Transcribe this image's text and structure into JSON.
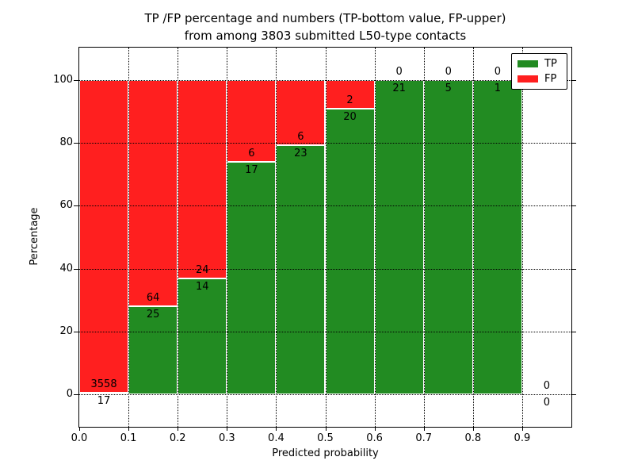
{
  "title": {
    "line1": "TP /FP percentage and numbers (TP-bottom value, FP-upper)",
    "line2": "from among 3803 submitted L50-type contacts"
  },
  "chart_data": {
    "type": "bar",
    "stacked": true,
    "title": "TP /FP percentage and numbers (TP-bottom value, FP-upper) from among 3803 submitted L50-type contacts",
    "xlabel": "Predicted probability",
    "ylabel": "Percentage",
    "x_ticks": [
      "0.0",
      "0.1",
      "0.2",
      "0.3",
      "0.4",
      "0.5",
      "0.6",
      "0.7",
      "0.8",
      "0.9"
    ],
    "y_ticks": [
      0,
      20,
      40,
      60,
      80,
      100
    ],
    "xlim": [
      0.0,
      1.0
    ],
    "ylim": [
      -10.6,
      110.6
    ],
    "grid": "dotted black gridlines drawn above bars",
    "bar_unit": "percent of bin total; annotations are raw counts (TP below boundary, FP above)",
    "total_contacts": 3803,
    "bins": [
      {
        "x_start": 0.0,
        "x_end": 0.1,
        "tp": 17,
        "fp": 3558
      },
      {
        "x_start": 0.1,
        "x_end": 0.2,
        "tp": 25,
        "fp": 64
      },
      {
        "x_start": 0.2,
        "x_end": 0.3,
        "tp": 14,
        "fp": 24
      },
      {
        "x_start": 0.3,
        "x_end": 0.4,
        "tp": 17,
        "fp": 6
      },
      {
        "x_start": 0.4,
        "x_end": 0.5,
        "tp": 23,
        "fp": 6
      },
      {
        "x_start": 0.5,
        "x_end": 0.6,
        "tp": 20,
        "fp": 2
      },
      {
        "x_start": 0.6,
        "x_end": 0.7,
        "tp": 21,
        "fp": 0
      },
      {
        "x_start": 0.7,
        "x_end": 0.8,
        "tp": 5,
        "fp": 0
      },
      {
        "x_start": 0.8,
        "x_end": 0.9,
        "tp": 1,
        "fp": 0
      },
      {
        "x_start": 0.9,
        "x_end": 1.0,
        "tp": 0,
        "fp": 0
      }
    ],
    "legend": {
      "position": "upper right",
      "entries": [
        {
          "label": "TP",
          "color": "#228b22"
        },
        {
          "label": "FP",
          "color": "#ff1f1f"
        }
      ]
    },
    "colors": {
      "tp": "#228b22",
      "fp": "#ff1f1f",
      "bar_edge": "#ffffff",
      "grid": "#000000"
    }
  }
}
